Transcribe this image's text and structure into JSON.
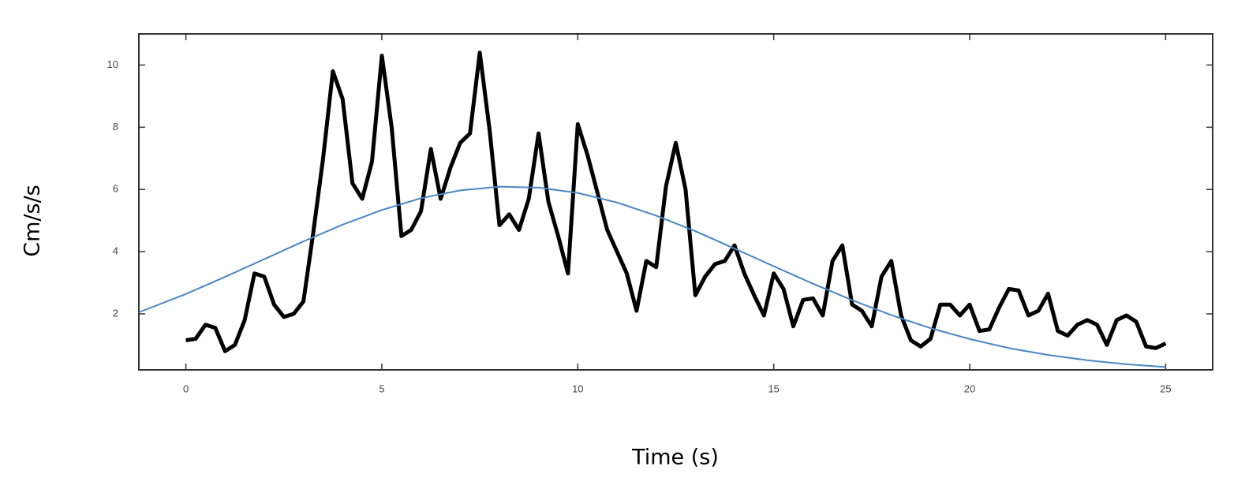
{
  "chart_data": {
    "type": "line",
    "xlabel": "Time (s)",
    "ylabel": "Cm/s/s",
    "xlim": [
      -1.2,
      26.2
    ],
    "ylim": [
      0.2,
      11
    ],
    "xticks": [
      0,
      5,
      10,
      15,
      20,
      25
    ],
    "yticks": [
      2,
      4,
      6,
      8,
      10
    ],
    "grid": false,
    "series": [
      {
        "color": "#000000",
        "x": [
          0,
          0.25,
          0.5,
          0.75,
          1,
          1.25,
          1.5,
          1.75,
          2,
          2.25,
          2.5,
          2.75,
          3,
          3.25,
          3.5,
          3.75,
          4,
          4.25,
          4.5,
          4.75,
          5,
          5.25,
          5.5,
          5.75,
          6,
          6.25,
          6.5,
          6.75,
          7,
          7.25,
          7.5,
          7.75,
          8,
          8.25,
          8.5,
          8.75,
          9,
          9.25,
          9.5,
          9.75,
          10,
          10.25,
          10.5,
          10.75,
          11,
          11.25,
          11.5,
          11.75,
          12,
          12.25,
          12.5,
          12.75,
          13,
          13.25,
          13.5,
          13.75,
          14,
          14.25,
          14.5,
          14.75,
          15,
          15.25,
          15.5,
          15.75,
          16,
          16.25,
          16.5,
          16.75,
          17,
          17.25,
          17.5,
          17.75,
          18,
          18.25,
          18.5,
          18.75,
          19,
          19.25,
          19.5,
          19.75,
          20,
          20.25,
          20.5,
          20.75,
          21,
          21.25,
          21.5,
          21.75,
          22,
          22.25,
          22.5,
          22.75,
          23,
          23.25,
          23.5,
          23.75,
          24,
          24.25,
          24.5,
          24.75,
          25
        ],
        "values": [
          1.15,
          1.2,
          1.65,
          1.55,
          0.8,
          1.0,
          1.8,
          3.3,
          3.2,
          2.3,
          1.9,
          2.0,
          2.4,
          4.6,
          7.0,
          9.8,
          8.9,
          6.2,
          5.7,
          6.9,
          10.3,
          8.0,
          4.5,
          4.7,
          5.3,
          7.3,
          5.7,
          6.7,
          7.5,
          7.8,
          10.4,
          7.9,
          4.85,
          5.2,
          4.7,
          5.7,
          7.8,
          5.6,
          4.5,
          3.3,
          8.1,
          7.1,
          5.9,
          4.7,
          4.0,
          3.3,
          2.1,
          3.7,
          3.5,
          6.1,
          7.5,
          6.0,
          2.6,
          3.2,
          3.6,
          3.7,
          4.2,
          3.3,
          2.6,
          1.95,
          3.3,
          2.8,
          1.6,
          2.45,
          2.5,
          1.95,
          3.7,
          4.2,
          2.3,
          2.1,
          1.6,
          3.2,
          3.7,
          1.95,
          1.15,
          0.95,
          1.2,
          2.3,
          2.3,
          1.95,
          2.3,
          1.45,
          1.5,
          2.2,
          2.8,
          2.75,
          1.95,
          2.1,
          2.65,
          1.45,
          1.3,
          1.65,
          1.8,
          1.65,
          1.0,
          1.8,
          1.95,
          1.75,
          0.95,
          0.9,
          1.05
        ]
      },
      {
        "color": "#4a86c5",
        "x": [
          -1.2,
          0,
          1,
          2,
          3,
          4,
          5,
          6,
          7,
          8,
          9,
          10,
          11,
          12,
          13,
          14,
          15,
          16,
          17,
          18,
          19,
          20,
          21,
          22,
          23,
          24,
          25
        ],
        "values": [
          2.05,
          2.64,
          3.19,
          3.76,
          4.33,
          4.87,
          5.34,
          5.72,
          5.97,
          6.09,
          6.06,
          5.89,
          5.58,
          5.16,
          4.66,
          4.1,
          3.53,
          2.97,
          2.44,
          1.96,
          1.54,
          1.19,
          0.9,
          0.68,
          0.51,
          0.38,
          0.29
        ]
      }
    ]
  }
}
